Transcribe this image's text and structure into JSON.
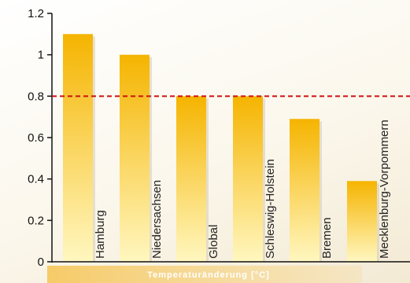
{
  "chart_data": {
    "type": "bar",
    "categories": [
      "Hamburg",
      "Niedersachsen",
      "Global",
      "Schleswig-Holstein",
      "Bremen",
      "Mecklenburg-Vorpommern"
    ],
    "values": [
      1.1,
      1.0,
      0.8,
      0.8,
      0.69,
      0.39
    ],
    "ylim": [
      0,
      1.2
    ],
    "yticks": [
      "0",
      "0.2",
      "0.4",
      "0.6",
      "0.8",
      "1",
      "1.2"
    ],
    "reference_line": {
      "value": 0.8,
      "style": "dashed",
      "color": "#cc1111"
    },
    "xlabel": "Temperaturänderung [°C]",
    "bar_color_top": "#f5b400",
    "bar_color_bottom": "#fff7c0",
    "xlabel_band_color": "#f6c65a"
  }
}
